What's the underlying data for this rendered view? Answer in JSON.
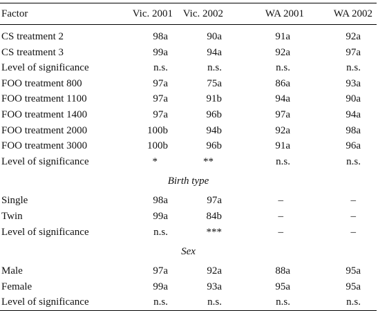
{
  "table": {
    "headers": [
      "Factor",
      "Vic. 2001",
      "Vic. 2002",
      "WA 2001",
      "WA 2002"
    ],
    "group1": [
      {
        "factor": "CS treatment 2",
        "vic2001": "98a",
        "vic2002": "90a",
        "wa2001": "91a",
        "wa2002": "92a"
      },
      {
        "factor": "CS treatment 3",
        "vic2001": "99a",
        "vic2002": "94a",
        "wa2001": "92a",
        "wa2002": "97a"
      },
      {
        "factor": "Level of significance",
        "vic2001": "n.s.",
        "vic2002": "n.s.",
        "wa2001": "n.s.",
        "wa2002": "n.s."
      },
      {
        "factor": "FOO treatment 800",
        "vic2001": "97a",
        "vic2002": "75a",
        "wa2001": "86a",
        "wa2002": "93a"
      },
      {
        "factor": "FOO treatment 1100",
        "vic2001": "97a",
        "vic2002": "91b",
        "wa2001": "94a",
        "wa2002": "90a"
      },
      {
        "factor": "FOO treatment 1400",
        "vic2001": "97a",
        "vic2002": "96b",
        "wa2001": "97a",
        "wa2002": "94a"
      },
      {
        "factor": "FOO treatment 2000",
        "vic2001": "100b",
        "vic2002": "94b",
        "wa2001": "92a",
        "wa2002": "98a"
      },
      {
        "factor": "FOO treatment 3000",
        "vic2001": "100b",
        "vic2002": "96b",
        "wa2001": "91a",
        "wa2002": "96a"
      },
      {
        "factor": "Level of significance",
        "vic2001": "*",
        "vic2002": "**",
        "wa2001": "n.s.",
        "wa2002": "n.s."
      }
    ],
    "section_birth": "Birth type",
    "group2": [
      {
        "factor": "Single",
        "vic2001": "98a",
        "vic2002": "97a",
        "wa2001": "–",
        "wa2002": "–"
      },
      {
        "factor": "Twin",
        "vic2001": "99a",
        "vic2002": "84b",
        "wa2001": "–",
        "wa2002": "–"
      },
      {
        "factor": "Level of significance",
        "vic2001": "n.s.",
        "vic2002": "***",
        "wa2001": "–",
        "wa2002": "–"
      }
    ],
    "section_sex": "Sex",
    "group3": [
      {
        "factor": "Male",
        "vic2001": "97a",
        "vic2002": "92a",
        "wa2001": "88a",
        "wa2002": "95a"
      },
      {
        "factor": "Female",
        "vic2001": "99a",
        "vic2002": "93a",
        "wa2001": "95a",
        "wa2002": "95a"
      },
      {
        "factor": "Level of significance",
        "vic2001": "n.s.",
        "vic2002": "n.s.",
        "wa2001": "n.s.",
        "wa2002": "n.s."
      }
    ]
  }
}
